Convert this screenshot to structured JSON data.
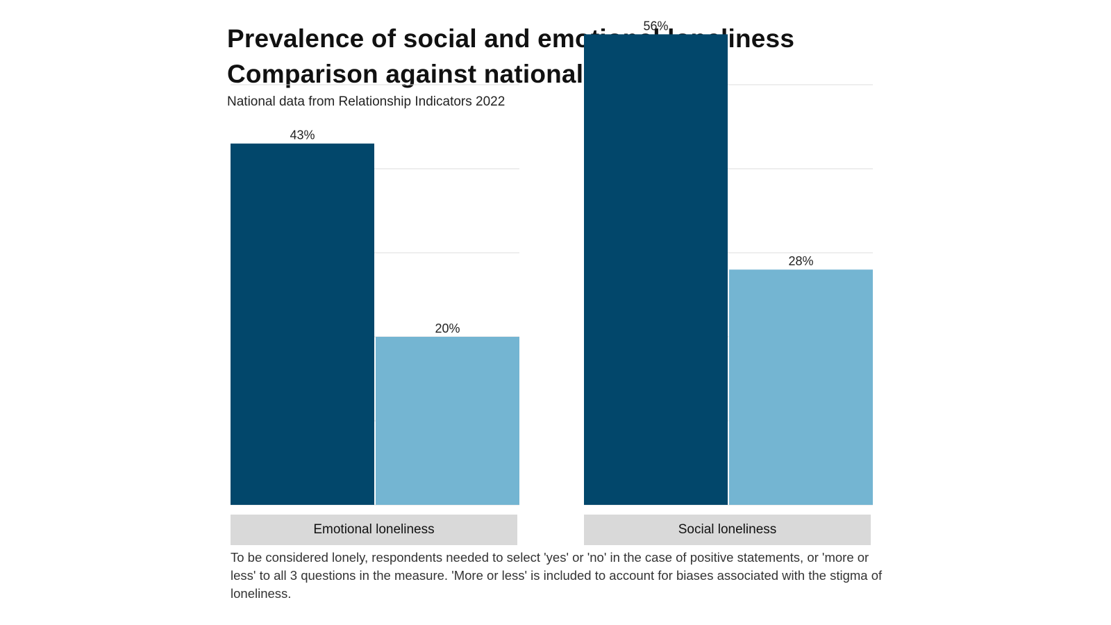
{
  "title_lines": [
    "Prevalence of social and emotional loneliness",
    "Comparison against national data"
  ],
  "subtitle": "National data from Relationship Indicators 2022",
  "footnote": "To be considered lonely, respondents needed to select 'yes' or 'no' in the case of positive statements, or 'more or less' to all 3 questions in the measure. 'More or less' is included to account for biases associated with the stigma of loneliness.",
  "colors": {
    "series_1": "#02476b",
    "series_2": "#74b5d2",
    "gridline": "#dedede",
    "strip": "#d9d9d9"
  },
  "chart_data": {
    "type": "bar",
    "title": "Prevalence of social and emotional loneliness Comparison against national data",
    "subtitle": "National data from Relationship Indicators 2022",
    "facets": [
      "Emotional loneliness",
      "Social loneliness"
    ],
    "series": [
      {
        "values": [
          43,
          56
        ],
        "labels": [
          "43%",
          "56%"
        ]
      },
      {
        "values": [
          20,
          28
        ],
        "labels": [
          "20%",
          "28%"
        ]
      }
    ],
    "ylim": [
      0,
      60
    ],
    "gridlines": [
      10,
      20,
      30,
      40,
      50
    ],
    "grid": true,
    "legend": "none"
  }
}
